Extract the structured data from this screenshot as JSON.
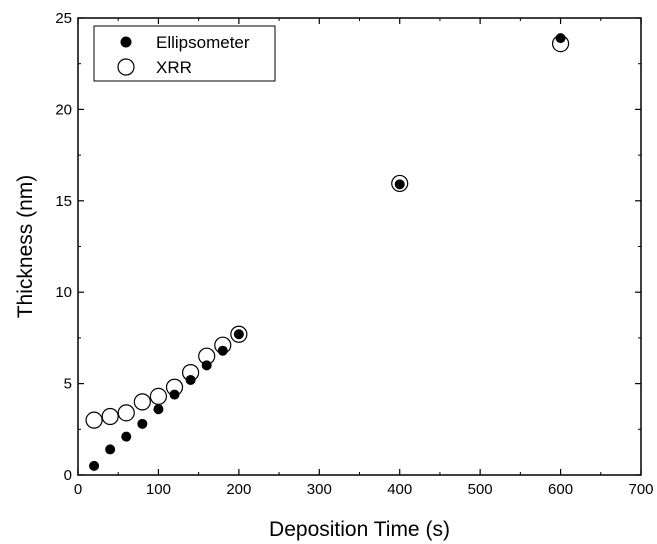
{
  "chart_data": {
    "type": "scatter",
    "title": "",
    "xlabel": "Deposition Time (s)",
    "ylabel": "Thickness (nm)",
    "xlim": [
      0,
      700
    ],
    "ylim": [
      0,
      25
    ],
    "xticks": [
      0,
      100,
      200,
      300,
      400,
      500,
      600,
      700
    ],
    "yticks": [
      0,
      5,
      10,
      15,
      20,
      25
    ],
    "grid": false,
    "legend_position": "top-left",
    "series": [
      {
        "name": "Ellipsometer",
        "marker": "filled-circle",
        "color": "#000000",
        "x": [
          20,
          40,
          60,
          80,
          100,
          120,
          140,
          160,
          180,
          200,
          400,
          600
        ],
        "y": [
          0.5,
          1.4,
          2.1,
          2.8,
          3.6,
          4.4,
          5.2,
          6.0,
          6.8,
          7.7,
          15.9,
          23.9
        ]
      },
      {
        "name": "XRR",
        "marker": "open-circle",
        "color": "#000000",
        "x": [
          20,
          40,
          60,
          80,
          100,
          120,
          140,
          160,
          180,
          200,
          400,
          600
        ],
        "y": [
          3.0,
          3.2,
          3.4,
          4.0,
          4.3,
          4.8,
          5.6,
          6.5,
          7.1,
          7.7,
          15.95,
          23.6
        ]
      }
    ]
  }
}
